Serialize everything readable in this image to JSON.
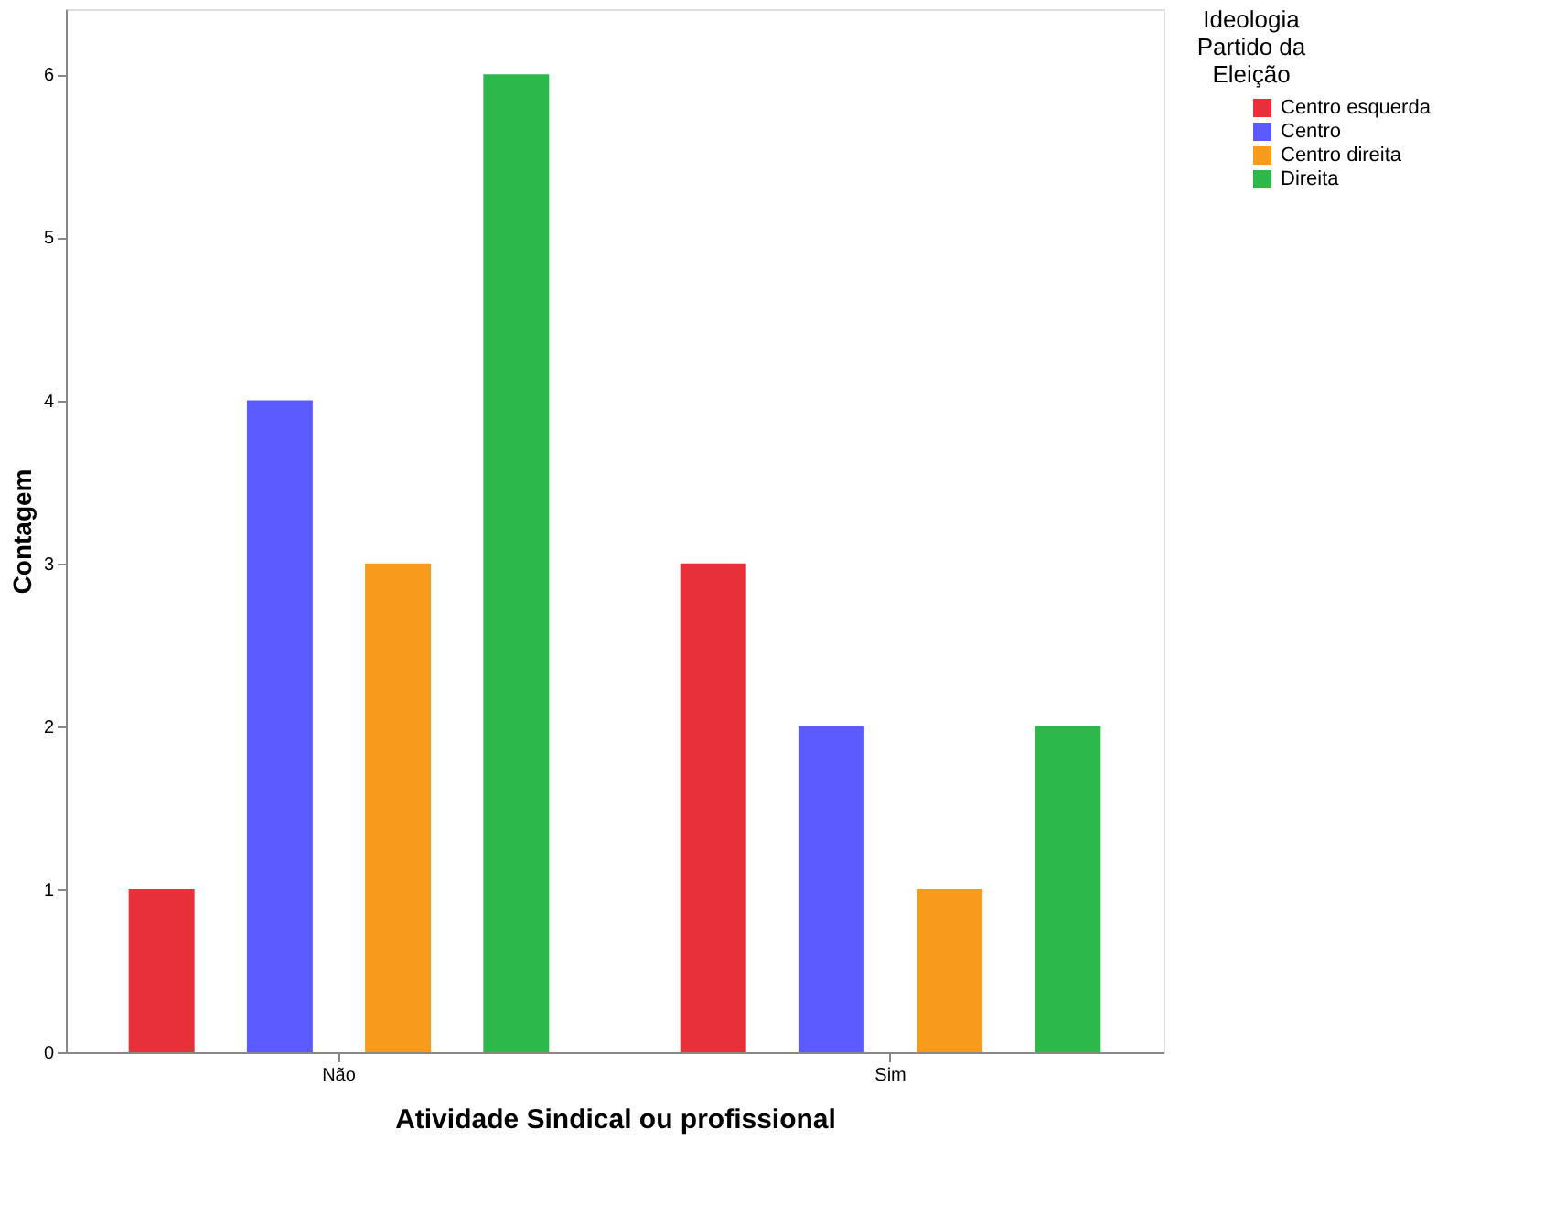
{
  "chart_data": {
    "type": "bar",
    "xlabel": "Atividade Sindical ou profissional",
    "ylabel": "Contagem",
    "legend_title": "Ideologia Partido da Eleição",
    "categories": [
      "Não",
      "Sim"
    ],
    "series": [
      {
        "name": "Centro esquerda",
        "color": "#e8303a",
        "values": [
          1,
          3
        ]
      },
      {
        "name": "Centro",
        "color": "#5b5bff",
        "values": [
          4,
          2
        ]
      },
      {
        "name": "Centro direita",
        "color": "#f89a1c",
        "values": [
          3,
          1
        ]
      },
      {
        "name": "Direita",
        "color": "#2cb84a",
        "values": [
          6,
          2
        ]
      }
    ],
    "ylim": [
      0,
      6.4
    ],
    "yticks": [
      0,
      1,
      2,
      3,
      4,
      5,
      6
    ],
    "grid": false,
    "legend": "top right"
  }
}
